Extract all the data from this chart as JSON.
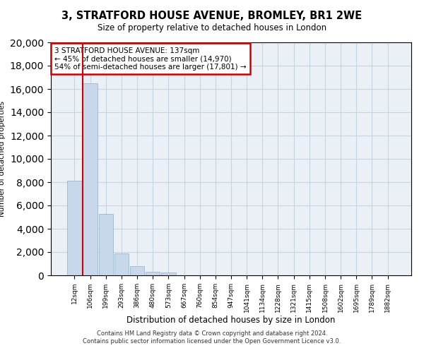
{
  "title": "3, STRATFORD HOUSE AVENUE, BROMLEY, BR1 2WE",
  "subtitle": "Size of property relative to detached houses in London",
  "xlabel": "Distribution of detached houses by size in London",
  "ylabel": "Number of detached properties",
  "bar_labels": [
    "12sqm",
    "106sqm",
    "199sqm",
    "293sqm",
    "386sqm",
    "480sqm",
    "573sqm",
    "667sqm",
    "760sqm",
    "854sqm",
    "947sqm",
    "1041sqm",
    "1134sqm",
    "1228sqm",
    "1321sqm",
    "1415sqm",
    "1508sqm",
    "1602sqm",
    "1695sqm",
    "1789sqm",
    "1882sqm"
  ],
  "bar_values": [
    8100,
    16500,
    5300,
    1850,
    780,
    320,
    250,
    0,
    0,
    0,
    0,
    0,
    0,
    0,
    0,
    0,
    0,
    0,
    0,
    0,
    0
  ],
  "bar_color": "#c8d8ea",
  "bar_edge_color": "#9ab8cc",
  "property_line_x": 1.0,
  "annotation_title": "3 STRATFORD HOUSE AVENUE: 137sqm",
  "annotation_line2": "← 45% of detached houses are smaller (14,970)",
  "annotation_line3": "54% of semi-detached houses are larger (17,801) →",
  "annotation_box_color": "#ffffff",
  "annotation_box_edge": "#cc0000",
  "line_color": "#cc0000",
  "ylim": [
    0,
    20000
  ],
  "yticks": [
    0,
    2000,
    4000,
    6000,
    8000,
    10000,
    12000,
    14000,
    16000,
    18000,
    20000
  ],
  "footer_line1": "Contains HM Land Registry data © Crown copyright and database right 2024.",
  "footer_line2": "Contains public sector information licensed under the Open Government Licence v3.0.",
  "bg_color": "#ffffff",
  "grid_color": "#c8d4de",
  "ax_bg_color": "#eaf0f6"
}
